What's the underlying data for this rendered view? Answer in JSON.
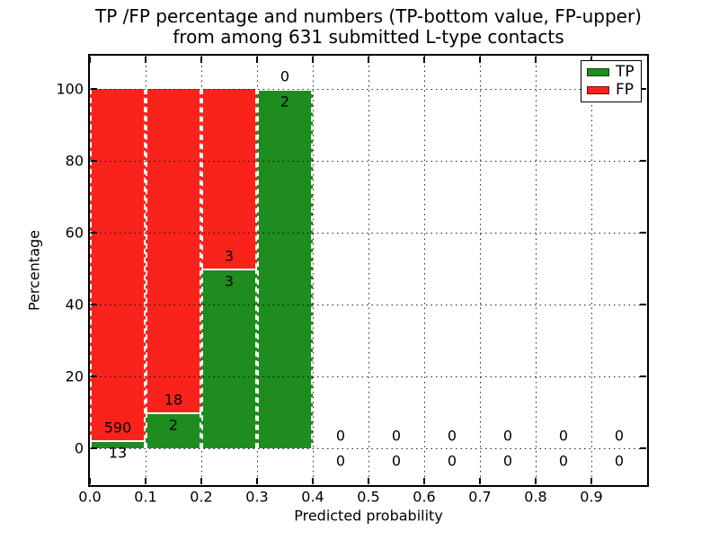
{
  "title": {
    "line1": "TP /FP percentage and numbers (TP-bottom value, FP-upper)",
    "line2": "from among 631 submitted L-type contacts"
  },
  "axes": {
    "xlabel": "Predicted probability",
    "ylabel": "Percentage",
    "x_tick_labels": [
      "0.0",
      "0.1",
      "0.2",
      "0.3",
      "0.4",
      "0.5",
      "0.6",
      "0.7",
      "0.8",
      "0.9"
    ],
    "y_tick_labels": [
      "0",
      "20",
      "40",
      "60",
      "80",
      "100"
    ]
  },
  "legend": [
    {
      "label": "TP",
      "color": "#1e8c1e"
    },
    {
      "label": "FP",
      "color": "#fa231c"
    }
  ],
  "chart_data": {
    "type": "bar",
    "stacked": true,
    "percent_stacked": true,
    "title": "TP /FP percentage and numbers (TP-bottom value, FP-upper)\nfrom among 631 submitted L-type contacts",
    "xlabel": "Predicted probability",
    "ylabel": "Percentage",
    "total_submitted": 631,
    "bin_width": 0.1,
    "bin_starts": [
      0.0,
      0.1,
      0.2,
      0.3,
      0.4,
      0.5,
      0.6,
      0.7,
      0.8,
      0.9
    ],
    "xlim": [
      0.0,
      1.0
    ],
    "ylim": [
      -10,
      110
    ],
    "y_ticks": [
      0,
      20,
      40,
      60,
      80,
      100
    ],
    "grid": "dotted",
    "legend_position": "upper right",
    "series": [
      {
        "name": "TP",
        "color": "#1e8c1e",
        "counts": [
          13,
          2,
          3,
          2,
          0,
          0,
          0,
          0,
          0,
          0
        ]
      },
      {
        "name": "FP",
        "color": "#fa231c",
        "counts": [
          590,
          18,
          3,
          0,
          0,
          0,
          0,
          0,
          0,
          0
        ]
      }
    ]
  }
}
